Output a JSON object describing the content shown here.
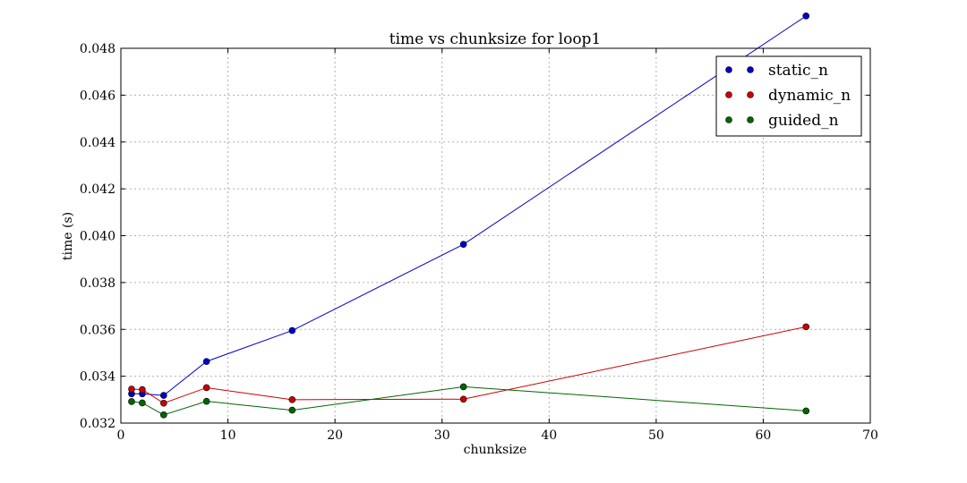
{
  "chart_data": {
    "type": "line",
    "title": "time vs chunksize for loop1",
    "xlabel": "chunksize",
    "ylabel": "time (s)",
    "xlim": [
      0,
      70
    ],
    "ylim": [
      0.032,
      0.048
    ],
    "xticks": [
      0,
      10,
      20,
      30,
      40,
      50,
      60,
      70
    ],
    "yticks": [
      0.032,
      0.034,
      0.036,
      0.038,
      0.04,
      0.042,
      0.044,
      0.046,
      0.048
    ],
    "ytick_labels": [
      "0.032",
      "0.034",
      "0.036",
      "0.038",
      "0.040",
      "0.042",
      "0.044",
      "0.046",
      "0.048"
    ],
    "grid": true,
    "legend_position": "top-right",
    "x": [
      1,
      2,
      4,
      8,
      16,
      32,
      64
    ],
    "series": [
      {
        "name": "static_n",
        "color": "#0000cc",
        "values": [
          0.03325,
          0.03325,
          0.03318,
          0.03463,
          0.03595,
          0.03963,
          0.04938
        ]
      },
      {
        "name": "dynamic_n",
        "color": "#cc0000",
        "values": [
          0.03345,
          0.03343,
          0.03285,
          0.03351,
          0.033,
          0.03302,
          0.03611
        ]
      },
      {
        "name": "guided_n",
        "color": "#006600",
        "values": [
          0.03292,
          0.03286,
          0.03235,
          0.03293,
          0.03255,
          0.03355,
          0.03252
        ]
      }
    ]
  }
}
